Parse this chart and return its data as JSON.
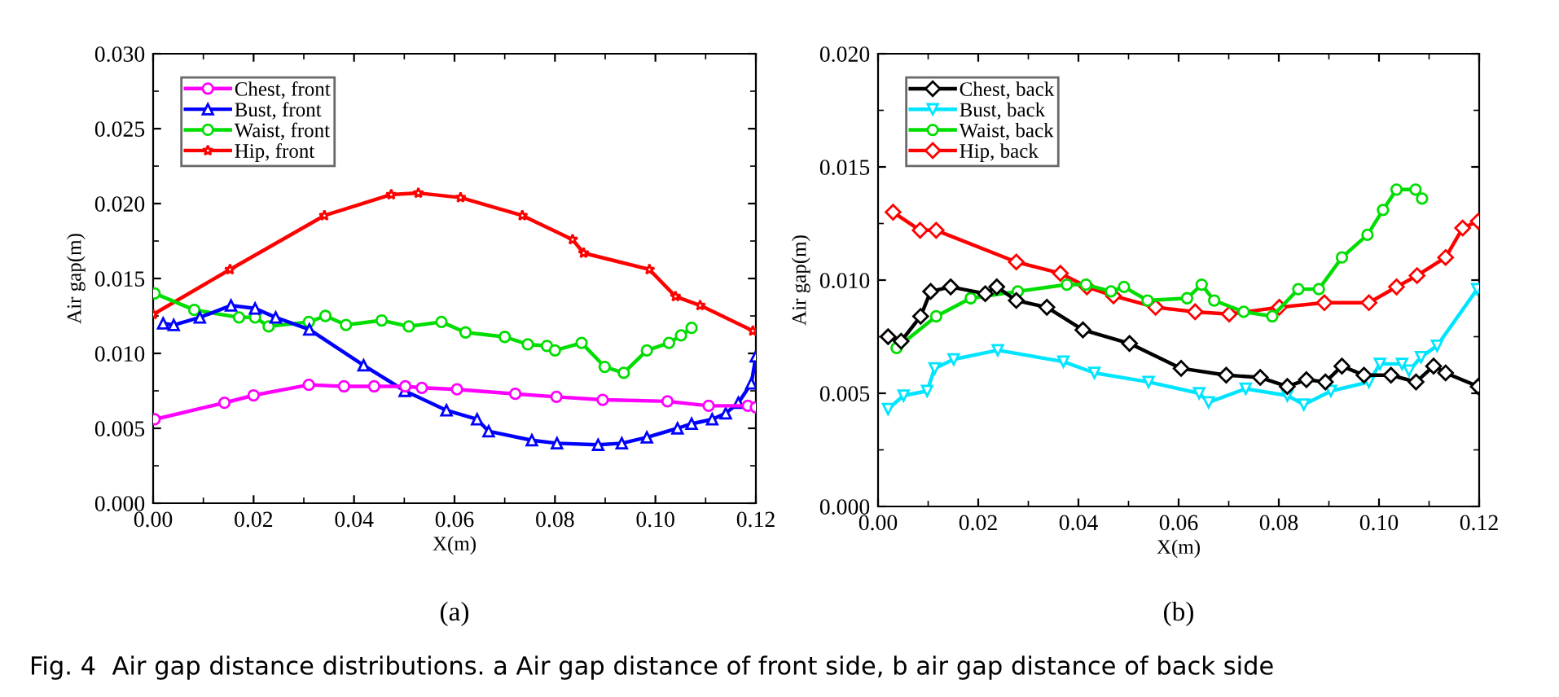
{
  "chart_data": [
    {
      "type": "line",
      "xlabel": "X(m)",
      "ylabel": "Air gap(m)",
      "xlim": [
        0,
        0.12
      ],
      "ylim": [
        0,
        0.03
      ],
      "xticks": [
        {
          "value": 0,
          "label": "0.00"
        },
        {
          "value": 0.02,
          "label": "0.02"
        },
        {
          "value": 0.04,
          "label": "0.04"
        },
        {
          "value": 0.06,
          "label": "0.06"
        },
        {
          "value": 0.08,
          "label": "0.08"
        },
        {
          "value": 0.1,
          "label": "0.10"
        },
        {
          "value": 0.12,
          "label": "0.12"
        }
      ],
      "yticks": [
        {
          "value": 0,
          "label": "0.000"
        },
        {
          "value": 0.005,
          "label": "0.005"
        },
        {
          "value": 0.01,
          "label": "0.010"
        },
        {
          "value": 0.015,
          "label": "0.015"
        },
        {
          "value": 0.02,
          "label": "0.020"
        },
        {
          "value": 0.025,
          "label": "0.025"
        },
        {
          "value": 0.03,
          "label": "0.030"
        }
      ],
      "legend": "top left",
      "grid": false,
      "annotations": [
        "(a)",
        "Fig. 4  Air gap distance distributions. a Air gap distance of front side, b air gap distance of back side"
      ],
      "series": [
        {
          "name": "Chest, front",
          "color": "#ff00ff",
          "marker": "circle",
          "x": [
            0.0003,
            0.0142,
            0.02,
            0.031,
            0.038,
            0.044,
            0.0502,
            0.0535,
            0.0605,
            0.0721,
            0.0803,
            0.0895,
            0.1024,
            0.1106,
            0.1184,
            0.12
          ],
          "values": [
            0.0056,
            0.0067,
            0.0072,
            0.0079,
            0.0078,
            0.0078,
            0.0078,
            0.0077,
            0.0076,
            0.0073,
            0.0071,
            0.0069,
            0.0068,
            0.0065,
            0.0065,
            0.0064
          ]
        },
        {
          "name": "Bust, front",
          "color": "#0000ff",
          "marker": "triangle",
          "x": [
            0.002,
            0.0041,
            0.0093,
            0.0155,
            0.0203,
            0.0244,
            0.0311,
            0.0419,
            0.0501,
            0.0584,
            0.0645,
            0.0668,
            0.0754,
            0.0804,
            0.0886,
            0.0933,
            0.0983,
            0.1044,
            0.1072,
            0.1113,
            0.114,
            0.1165,
            0.1191,
            0.12
          ],
          "values": [
            0.012,
            0.0119,
            0.0124,
            0.0132,
            0.013,
            0.0124,
            0.0116,
            0.0092,
            0.0075,
            0.0062,
            0.0056,
            0.0048,
            0.0042,
            0.004,
            0.0039,
            0.004,
            0.0044,
            0.005,
            0.0053,
            0.0056,
            0.006,
            0.0067,
            0.008,
            0.0098
          ]
        },
        {
          "name": "Waist, front",
          "color": "#00dd00",
          "marker": "circle",
          "x": [
            0.0003,
            0.0082,
            0.0171,
            0.0203,
            0.023,
            0.031,
            0.0343,
            0.0384,
            0.0455,
            0.0509,
            0.0574,
            0.0622,
            0.07,
            0.0746,
            0.0784,
            0.08,
            0.0853,
            0.0899,
            0.0937,
            0.0983,
            0.1027,
            0.1051,
            0.1072
          ],
          "values": [
            0.014,
            0.0129,
            0.0124,
            0.0124,
            0.0118,
            0.0121,
            0.0125,
            0.0119,
            0.0122,
            0.0118,
            0.0121,
            0.0114,
            0.0111,
            0.0106,
            0.0105,
            0.0102,
            0.0107,
            0.0091,
            0.0087,
            0.0102,
            0.0107,
            0.0112,
            0.0117
          ]
        },
        {
          "name": "Hip, front",
          "color": "#ff0000",
          "marker": "star",
          "x": [
            0,
            0.0153,
            0.0341,
            0.0474,
            0.0528,
            0.0612,
            0.0735,
            0.0835,
            0.0857,
            0.0988,
            0.104,
            0.1089,
            0.1194
          ],
          "values": [
            0.0126,
            0.0156,
            0.0192,
            0.0206,
            0.0207,
            0.0204,
            0.0192,
            0.0176,
            0.0167,
            0.0156,
            0.0138,
            0.0132,
            0.0115
          ]
        }
      ]
    },
    {
      "type": "line",
      "xlabel": "X(m)",
      "ylabel": "Air gap(m)",
      "xlim": [
        0,
        0.12
      ],
      "ylim": [
        0,
        0.02
      ],
      "xticks": [
        {
          "value": 0,
          "label": "0.00"
        },
        {
          "value": 0.02,
          "label": "0.02"
        },
        {
          "value": 0.04,
          "label": "0.04"
        },
        {
          "value": 0.06,
          "label": "0.06"
        },
        {
          "value": 0.08,
          "label": "0.08"
        },
        {
          "value": 0.1,
          "label": "0.10"
        },
        {
          "value": 0.12,
          "label": "0.12"
        }
      ],
      "yticks": [
        {
          "value": 0,
          "label": "0.000"
        },
        {
          "value": 0.005,
          "label": "0.005"
        },
        {
          "value": 0.01,
          "label": "0.010"
        },
        {
          "value": 0.015,
          "label": "0.015"
        },
        {
          "value": 0.02,
          "label": "0.020"
        }
      ],
      "legend": "top left",
      "grid": false,
      "annotations": [
        "(b)"
      ],
      "series": [
        {
          "name": "Chest, back",
          "color": "#000000",
          "marker": "diamond",
          "x": [
            0.002,
            0.0046,
            0.0085,
            0.0105,
            0.0145,
            0.0214,
            0.0237,
            0.0276,
            0.0337,
            0.0409,
            0.0502,
            0.0605,
            0.0695,
            0.0763,
            0.0817,
            0.0855,
            0.0893,
            0.0926,
            0.097,
            0.1024,
            0.1074,
            0.1109,
            0.1133,
            0.1198
          ],
          "values": [
            0.0075,
            0.0073,
            0.0084,
            0.0095,
            0.0097,
            0.0094,
            0.0097,
            0.0091,
            0.0088,
            0.0078,
            0.0072,
            0.0061,
            0.0058,
            0.0057,
            0.0053,
            0.0056,
            0.0055,
            0.0062,
            0.0058,
            0.0058,
            0.0055,
            0.0062,
            0.0059,
            0.0053
          ]
        },
        {
          "name": "Bust, back",
          "color": "#00e5ff",
          "marker": "triangle_down",
          "x": [
            0.002,
            0.0051,
            0.0098,
            0.0113,
            0.0151,
            0.0239,
            0.037,
            0.0432,
            0.054,
            0.0641,
            0.066,
            0.0734,
            0.0817,
            0.085,
            0.0904,
            0.098,
            0.1002,
            0.1046,
            0.106,
            0.1084,
            0.1116,
            0.1196
          ],
          "values": [
            0.0043,
            0.0049,
            0.0051,
            0.0061,
            0.0065,
            0.0069,
            0.0064,
            0.0059,
            0.0055,
            0.005,
            0.0046,
            0.0052,
            0.0049,
            0.0045,
            0.0051,
            0.0055,
            0.0063,
            0.0063,
            0.006,
            0.0066,
            0.0071,
            0.0096
          ]
        },
        {
          "name": "Waist, back",
          "color": "#00dd00",
          "marker": "circle",
          "x": [
            0.0037,
            0.0116,
            0.0185,
            0.0279,
            0.0377,
            0.0415,
            0.0465,
            0.0491,
            0.0538,
            0.0617,
            0.0646,
            0.0671,
            0.073,
            0.0787,
            0.0839,
            0.088,
            0.0926,
            0.0977,
            0.1008,
            0.1035,
            0.1073,
            0.1086
          ],
          "values": [
            0.007,
            0.0084,
            0.0092,
            0.0095,
            0.0098,
            0.0098,
            0.0095,
            0.0097,
            0.0091,
            0.0092,
            0.0098,
            0.0091,
            0.0086,
            0.0084,
            0.0096,
            0.0096,
            0.011,
            0.012,
            0.0131,
            0.014,
            0.014,
            0.0136
          ]
        },
        {
          "name": "Hip, back",
          "color": "#ff0000",
          "marker": "diamond",
          "x": [
            0.003,
            0.0084,
            0.0116,
            0.0276,
            0.0364,
            0.0417,
            0.047,
            0.0554,
            0.0633,
            0.0701,
            0.0801,
            0.0891,
            0.098,
            0.1035,
            0.1076,
            0.1133,
            0.1167,
            0.1198
          ],
          "values": [
            0.013,
            0.0122,
            0.0122,
            0.0108,
            0.0103,
            0.0097,
            0.0093,
            0.0088,
            0.0086,
            0.0085,
            0.0088,
            0.009,
            0.009,
            0.0097,
            0.0102,
            0.011,
            0.0123,
            0.0126
          ]
        }
      ]
    }
  ]
}
